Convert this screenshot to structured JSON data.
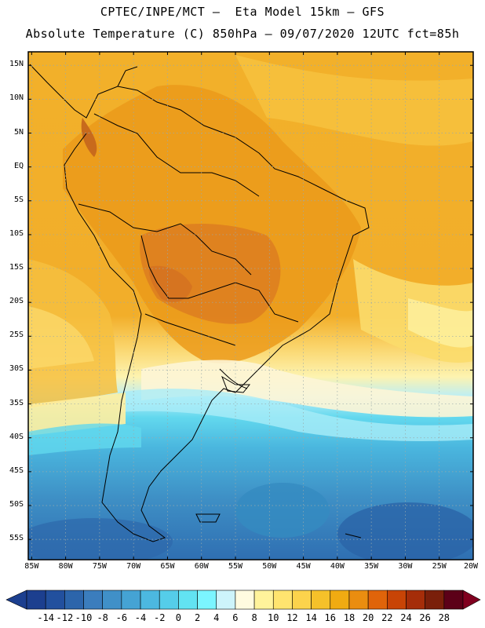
{
  "header": {
    "line1": "CPTEC/INPE/MCT –  Eta Model 15km – GFS",
    "line2": "Absolute Temperature (C) 850hPa – 09/07/2020 12UTC fct=85h"
  },
  "map": {
    "lat_labels": [
      "15N",
      "10N",
      "5N",
      "EQ",
      "5S",
      "10S",
      "15S",
      "20S",
      "25S",
      "30S",
      "35S",
      "40S",
      "45S",
      "50S",
      "55S"
    ],
    "lat_values": [
      15,
      10,
      5,
      0,
      -5,
      -10,
      -15,
      -20,
      -25,
      -30,
      -35,
      -40,
      -45,
      -50,
      -55
    ],
    "lon_labels": [
      "85W",
      "80W",
      "75W",
      "70W",
      "65W",
      "60W",
      "55W",
      "50W",
      "45W",
      "40W",
      "35W",
      "30W",
      "25W",
      "20W"
    ],
    "lon_values": [
      -85,
      -80,
      -75,
      -70,
      -65,
      -60,
      -55,
      -50,
      -45,
      -40,
      -35,
      -30,
      -25,
      -20
    ],
    "lat_range": [
      -58,
      17
    ],
    "lon_range": [
      -85.5,
      -20
    ],
    "grid": "dotted"
  },
  "colorbar": {
    "labels": [
      "-14",
      "-12",
      "-10",
      "-8",
      "-6",
      "-4",
      "-2",
      "0",
      "2",
      "4",
      "6",
      "8",
      "10",
      "12",
      "14",
      "16",
      "18",
      "20",
      "22",
      "24",
      "26",
      "28"
    ],
    "colors": [
      "#1c3f8f",
      "#22509e",
      "#2c65ab",
      "#3b7dbd",
      "#4090c8",
      "#45a3d4",
      "#4cb8e0",
      "#55cde9",
      "#62e3f2",
      "#7bf5ff",
      "#cdf4fb",
      "#fffbe0",
      "#fff39b",
      "#ffe46f",
      "#fcd34c",
      "#f5c12a",
      "#f0ab12",
      "#ea8d10",
      "#e0640a",
      "#c84406",
      "#a52d09",
      "#7a1f0a",
      "#5c0018"
    ],
    "under_color": "#1c3f8f",
    "over_color": "#80001f"
  },
  "colors": {
    "warm_inland": "#e08a20",
    "ocean_tropics": "#f2b62a",
    "subtropics_pale": "#fdf0a6",
    "cold_ocean": "#3f95c8",
    "border_lines": "#000000"
  }
}
